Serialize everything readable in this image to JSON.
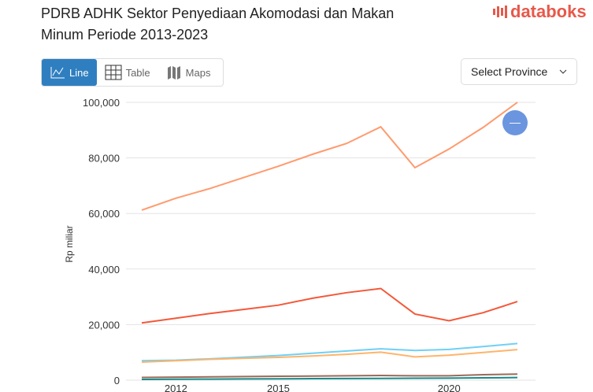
{
  "header": {
    "title": "PDRB ADHK Sektor Penyediaan Akomodasi dan Makan Minum Periode 2013-2023",
    "logo": "databoks"
  },
  "tabs": [
    {
      "label": "Line",
      "icon": "line-chart-icon",
      "active": true
    },
    {
      "label": "Table",
      "icon": "table-icon"
    },
    {
      "label": "Maps",
      "icon": "map-icon"
    }
  ],
  "province_select": {
    "label": "Select Province",
    "icon": "chevron-down-icon"
  },
  "fab": {
    "label": "—"
  },
  "chart_data": {
    "type": "line",
    "title": "",
    "ylabel": "Rp miliar",
    "ylim": [
      0,
      100000
    ],
    "yticks": [
      "0",
      "20,000",
      "40,000",
      "60,000",
      "80,000",
      "100,000"
    ],
    "x": [
      2011,
      2012,
      2013,
      2014,
      2015,
      2016,
      2017,
      2018,
      2019,
      2020,
      2021,
      2022
    ],
    "xticks": [
      "2012",
      "2015",
      "2020"
    ],
    "grid": true,
    "series": [
      {
        "color": "#ff9a6e",
        "values": [
          61200,
          65500,
          69000,
          73000,
          77000,
          81300,
          85200,
          91200,
          76500,
          83200,
          91000,
          100000
        ]
      },
      {
        "color": "#f4583a",
        "values": [
          20600,
          22300,
          24000,
          25500,
          27000,
          29500,
          31500,
          33000,
          23800,
          21400,
          24300,
          28300
        ]
      },
      {
        "color": "#6fd0f6",
        "values": [
          7000,
          7200,
          7700,
          8300,
          8900,
          9700,
          10500,
          11300,
          10700,
          11100,
          12100,
          13200
        ]
      },
      {
        "color": "#ffb46a",
        "values": [
          6500,
          7000,
          7500,
          7900,
          8200,
          8700,
          9300,
          10100,
          8400,
          9000,
          10000,
          11000
        ]
      },
      {
        "color": "#9c6a5a",
        "values": [
          1000,
          1100,
          1200,
          1300,
          1400,
          1500,
          1600,
          1700,
          1600,
          1600,
          2000,
          2200
        ]
      },
      {
        "color": "#1a8a8a",
        "values": [
          300,
          350,
          400,
          450,
          500,
          550,
          600,
          650,
          700,
          750,
          850,
          950
        ]
      }
    ]
  }
}
